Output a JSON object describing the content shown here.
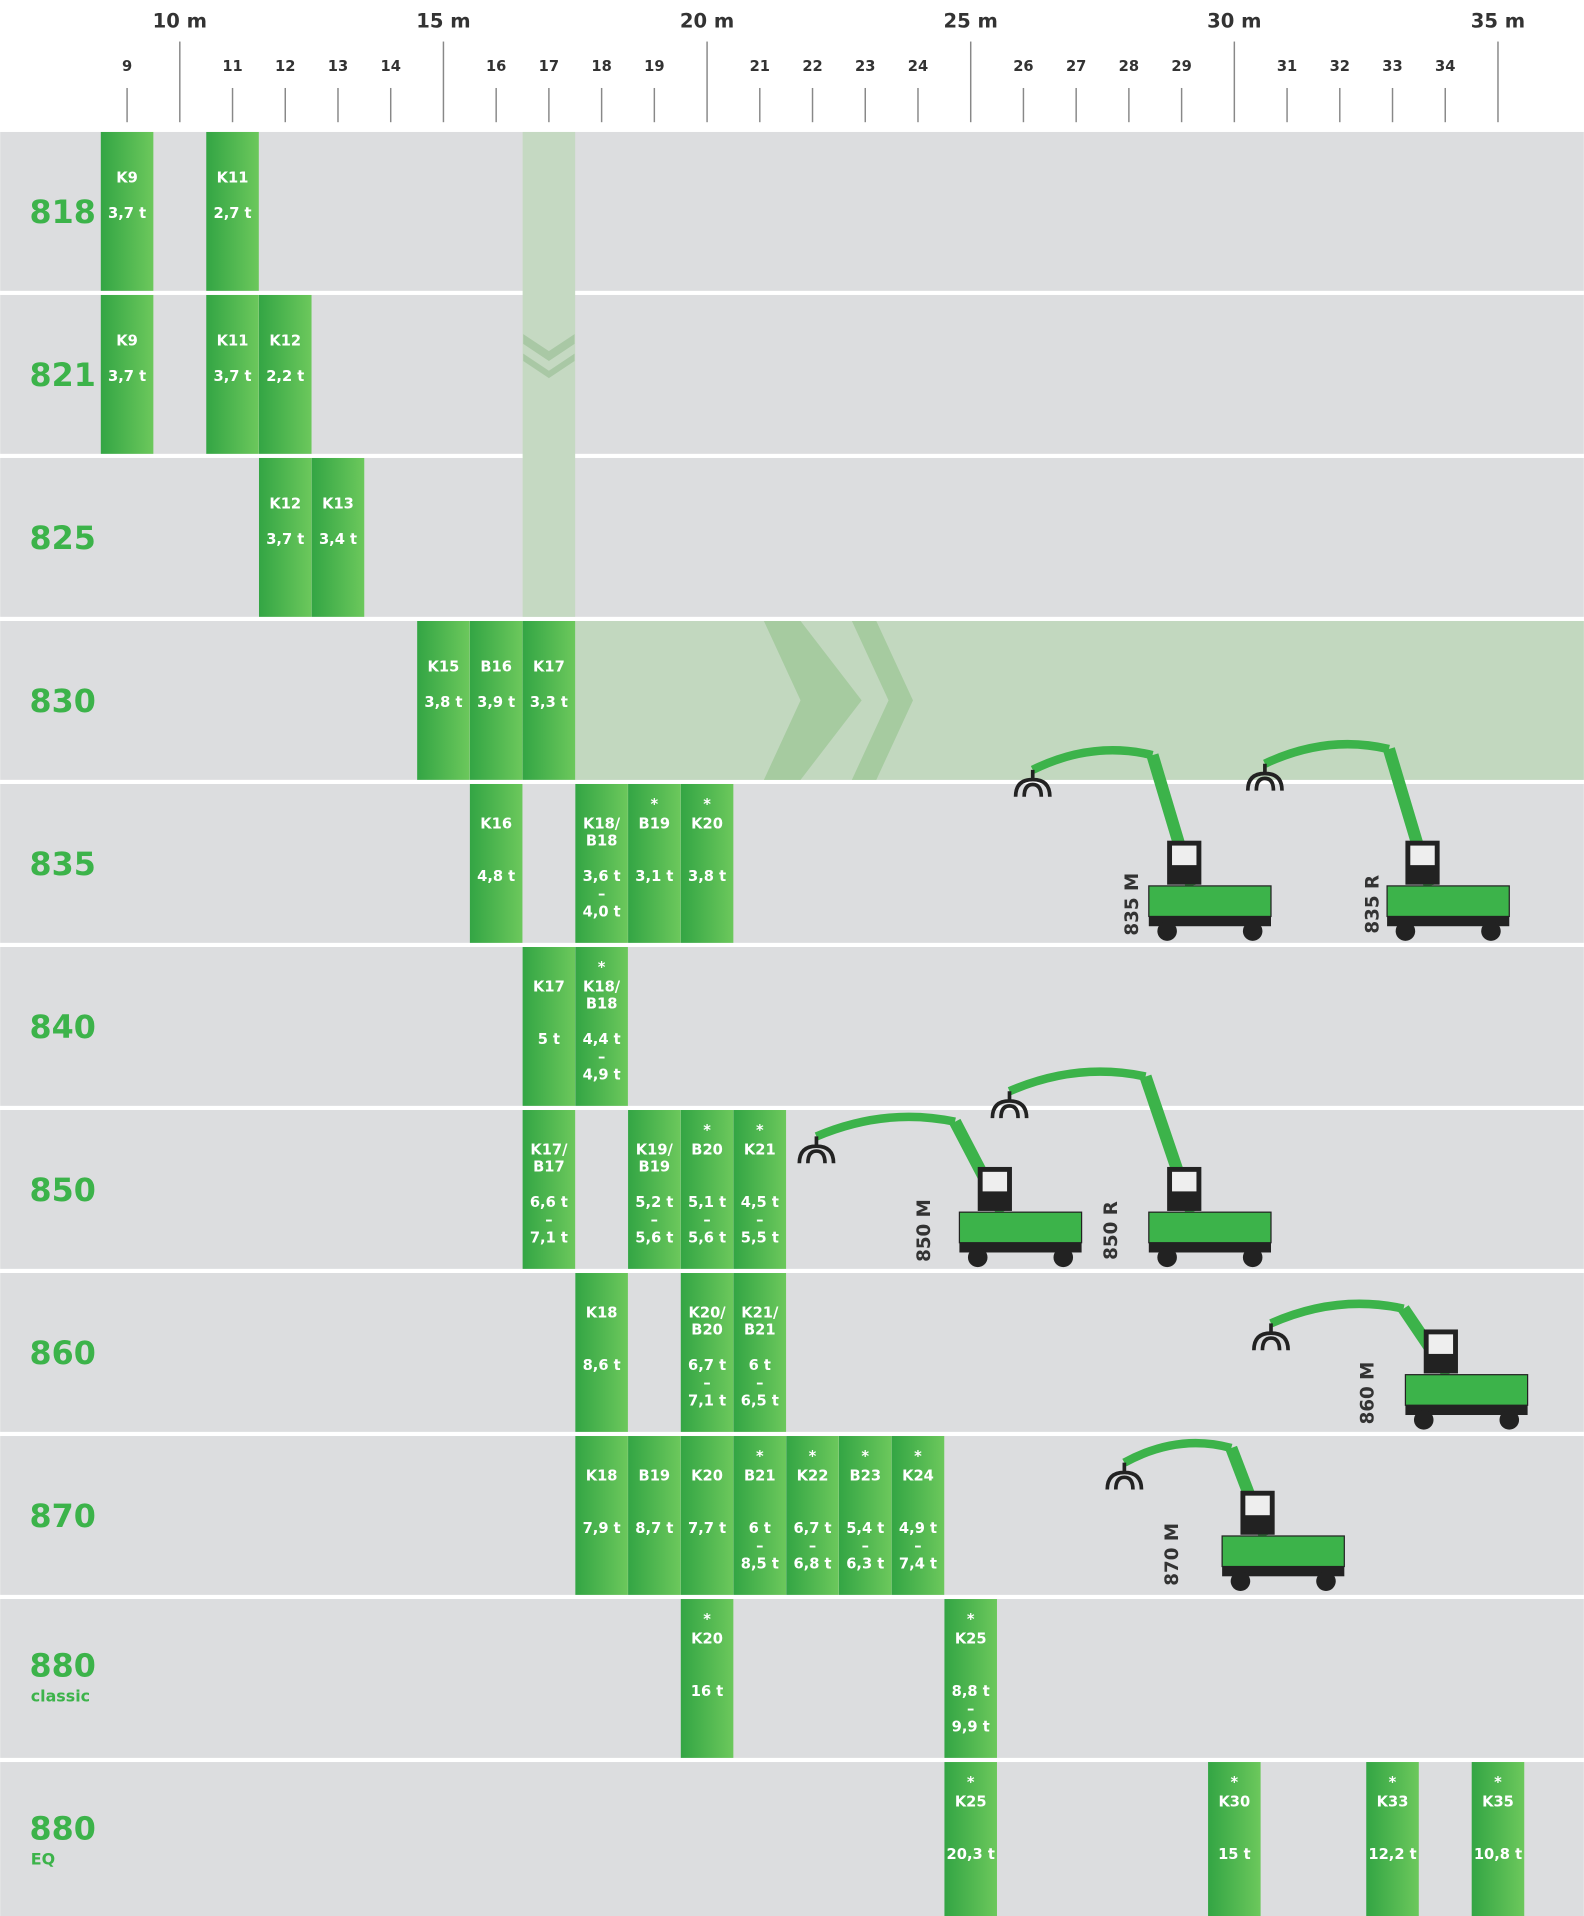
{
  "axis": {
    "major": [
      "10 m",
      "15 m",
      "20 m",
      "25 m",
      "30 m",
      "35 m"
    ],
    "minor": [
      "9",
      "11",
      "12",
      "13",
      "14",
      "16",
      "17",
      "18",
      "19",
      "21",
      "22",
      "23",
      "24",
      "26",
      "27",
      "28",
      "29",
      "31",
      "32",
      "33",
      "34"
    ]
  },
  "rows": [
    {
      "model": "818",
      "bars": [
        {
          "name": [
            "K9"
          ],
          "load": [
            "3,7 t"
          ]
        },
        {
          "name": [
            "K11"
          ],
          "load": [
            "2,7 t"
          ]
        }
      ]
    },
    {
      "model": "821",
      "bars": [
        {
          "name": [
            "K9"
          ],
          "load": [
            "3,7 t"
          ]
        },
        {
          "name": [
            "K11"
          ],
          "load": [
            "3,7 t"
          ]
        },
        {
          "name": [
            "K12"
          ],
          "load": [
            "2,2 t"
          ]
        }
      ]
    },
    {
      "model": "825",
      "bars": [
        {
          "name": [
            "K12"
          ],
          "load": [
            "3,7 t"
          ]
        },
        {
          "name": [
            "K13"
          ],
          "load": [
            "3,4 t"
          ]
        }
      ]
    },
    {
      "model": "830",
      "bars": [
        {
          "name": [
            "K15"
          ],
          "load": [
            "3,8 t"
          ]
        },
        {
          "name": [
            "B16"
          ],
          "load": [
            "3,9 t"
          ]
        },
        {
          "name": [
            "K17"
          ],
          "load": [
            "3,3 t"
          ]
        }
      ]
    },
    {
      "model": "835",
      "bars": [
        {
          "name": [
            "K16"
          ],
          "load": [
            "4,8 t"
          ]
        },
        {
          "name": [
            "K18/",
            "B18"
          ],
          "load": [
            "3,6 t",
            "–",
            "4,0 t"
          ]
        },
        {
          "star": "*",
          "name": [
            "B19"
          ],
          "load": [
            "3,1 t"
          ]
        },
        {
          "star": "*",
          "name": [
            "K20"
          ],
          "load": [
            "3,8 t"
          ]
        }
      ]
    },
    {
      "model": "840",
      "bars": [
        {
          "name": [
            "K17"
          ],
          "load": [
            "5 t"
          ]
        },
        {
          "star": "*",
          "name": [
            "K18/",
            "B18"
          ],
          "load": [
            "4,4 t",
            "–",
            "4,9 t"
          ]
        }
      ]
    },
    {
      "model": "850",
      "bars": [
        {
          "name": [
            "K17/",
            "B17"
          ],
          "load": [
            "6,6 t",
            "–",
            "7,1 t"
          ]
        },
        {
          "name": [
            "K19/",
            "B19"
          ],
          "load": [
            "5,2 t",
            "–",
            "5,6 t"
          ]
        },
        {
          "star": "*",
          "name": [
            "B20"
          ],
          "load": [
            "5,1 t",
            "–",
            "5,6 t"
          ]
        },
        {
          "star": "*",
          "name": [
            "K21"
          ],
          "load": [
            "4,5 t",
            "–",
            "5,5 t"
          ]
        }
      ]
    },
    {
      "model": "860",
      "bars": [
        {
          "name": [
            "K18"
          ],
          "load": [
            "8,6 t"
          ]
        },
        {
          "name": [
            "K20/",
            "B20"
          ],
          "load": [
            "6,7 t",
            "–",
            "7,1 t"
          ]
        },
        {
          "name": [
            "K21/",
            "B21"
          ],
          "load": [
            "6 t",
            "–",
            "6,5 t"
          ]
        }
      ]
    },
    {
      "model": "870",
      "bars": [
        {
          "name": [
            "K18"
          ],
          "load": [
            "7,9 t"
          ]
        },
        {
          "name": [
            "B19"
          ],
          "load": [
            "8,7 t"
          ]
        },
        {
          "name": [
            "K20"
          ],
          "load": [
            "7,7 t"
          ]
        },
        {
          "star": "*",
          "name": [
            "B21"
          ],
          "load": [
            "6 t",
            "–",
            "8,5 t"
          ]
        },
        {
          "star": "*",
          "name": [
            "K22"
          ],
          "load": [
            "6,7 t",
            "–",
            "6,8 t"
          ]
        },
        {
          "star": "*",
          "name": [
            "B23"
          ],
          "load": [
            "5,4 t",
            "–",
            "6,3 t"
          ]
        },
        {
          "star": "*",
          "name": [
            "K24"
          ],
          "load": [
            "4,9 t",
            "–",
            "7,4 t"
          ]
        }
      ]
    },
    {
      "model": "880",
      "sub": "classic",
      "bars": [
        {
          "star": "*",
          "name": [
            "K20"
          ],
          "load": [
            "16 t"
          ]
        },
        {
          "star": "*",
          "name": [
            "K25"
          ],
          "load": [
            "8,8 t",
            "–",
            "9,9 t"
          ]
        }
      ]
    },
    {
      "model": "880",
      "sub": "EQ",
      "bars": [
        {
          "star": "*",
          "name": [
            "K25"
          ],
          "load": [
            "20,3 t"
          ]
        },
        {
          "star": "*",
          "name": [
            "K30"
          ],
          "load": [
            "15 t"
          ]
        },
        {
          "star": "*",
          "name": [
            "K33"
          ],
          "load": [
            "12,2 t"
          ]
        },
        {
          "star": "*",
          "name": [
            "K35"
          ],
          "load": [
            "10,8 t"
          ]
        }
      ]
    }
  ],
  "machines": [
    {
      "label": "835 M"
    },
    {
      "label": "835 R"
    },
    {
      "label": "850 M"
    },
    {
      "label": "850 R"
    },
    {
      "label": "860 M"
    },
    {
      "label": "870 M"
    }
  ]
}
